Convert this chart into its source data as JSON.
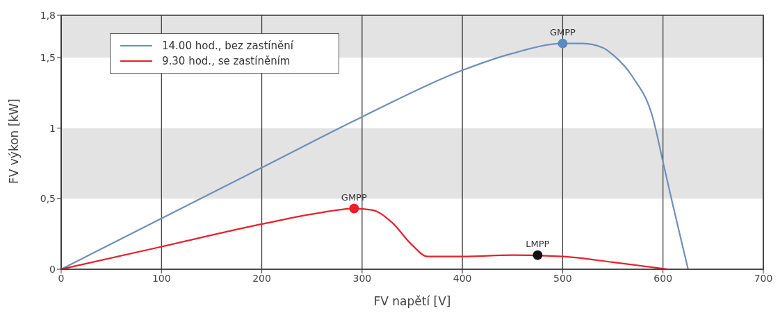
{
  "chart_data": {
    "type": "line",
    "xlabel": "FV napětí [V]",
    "ylabel": "FV výkon [kW]",
    "xlim": [
      0,
      700
    ],
    "xticks": [
      0,
      100,
      200,
      300,
      400,
      500,
      600,
      700
    ],
    "ylim": [
      0,
      1.8
    ],
    "yticks": [
      {
        "value": 0,
        "label": "0"
      },
      {
        "value": 0.5,
        "label": "0,5"
      },
      {
        "value": 1,
        "label": "1"
      },
      {
        "value": 1.5,
        "label": "1,5"
      },
      {
        "value": 1.8,
        "label": "1,8"
      }
    ],
    "grid": "x",
    "legend": "top left",
    "marker": "none",
    "line_style": "solid",
    "bands": [
      {
        "axis": "y",
        "from": 0.5,
        "to": 1,
        "color": "#e3e3e3"
      },
      {
        "axis": "y",
        "from": 1.5,
        "to": 1.8,
        "color": "#e3e3e3"
      }
    ],
    "series": [
      {
        "name": "14.00 hod., bez zastínění",
        "color": "#6f8fb8",
        "x": [
          0,
          100,
          200,
          300,
          400,
          450,
          500,
          520,
          540,
          550,
          570,
          590,
          600,
          610,
          620,
          625
        ],
        "values": [
          0,
          0.36,
          0.72,
          1.08,
          1.41,
          1.53,
          1.6,
          1.6,
          1.57,
          1.52,
          1.36,
          1.07,
          0.76,
          0.45,
          0.15,
          0
        ]
      },
      {
        "name": "9.30 hod., se zastíněním",
        "color": "#e8202a",
        "x": [
          0,
          100,
          200,
          250,
          292,
          310,
          330,
          350,
          365,
          400,
          450,
          500,
          550,
          605
        ],
        "values": [
          0,
          0.16,
          0.32,
          0.39,
          0.43,
          0.42,
          0.33,
          0.17,
          0.09,
          0.09,
          0.1,
          0.09,
          0.05,
          0
        ]
      },
      {
        "type": "scatter",
        "marker": "circle",
        "color": "#5b8ac4",
        "x": [
          500
        ],
        "values": [
          1.6
        ]
      },
      {
        "type": "scatter",
        "marker": "circle",
        "color": "#e8202a",
        "x": [
          292
        ],
        "values": [
          0.43
        ]
      },
      {
        "type": "scatter",
        "marker": "circle",
        "color": "#111111",
        "x": [
          475
        ],
        "values": [
          0.1
        ]
      }
    ],
    "annotations": [
      {
        "text": "GMPP",
        "x": 500,
        "y": 1.6
      },
      {
        "text": "GMPP",
        "x": 292,
        "y": 0.43
      },
      {
        "text": "LMPP",
        "x": 475,
        "y": 0.1
      }
    ]
  }
}
